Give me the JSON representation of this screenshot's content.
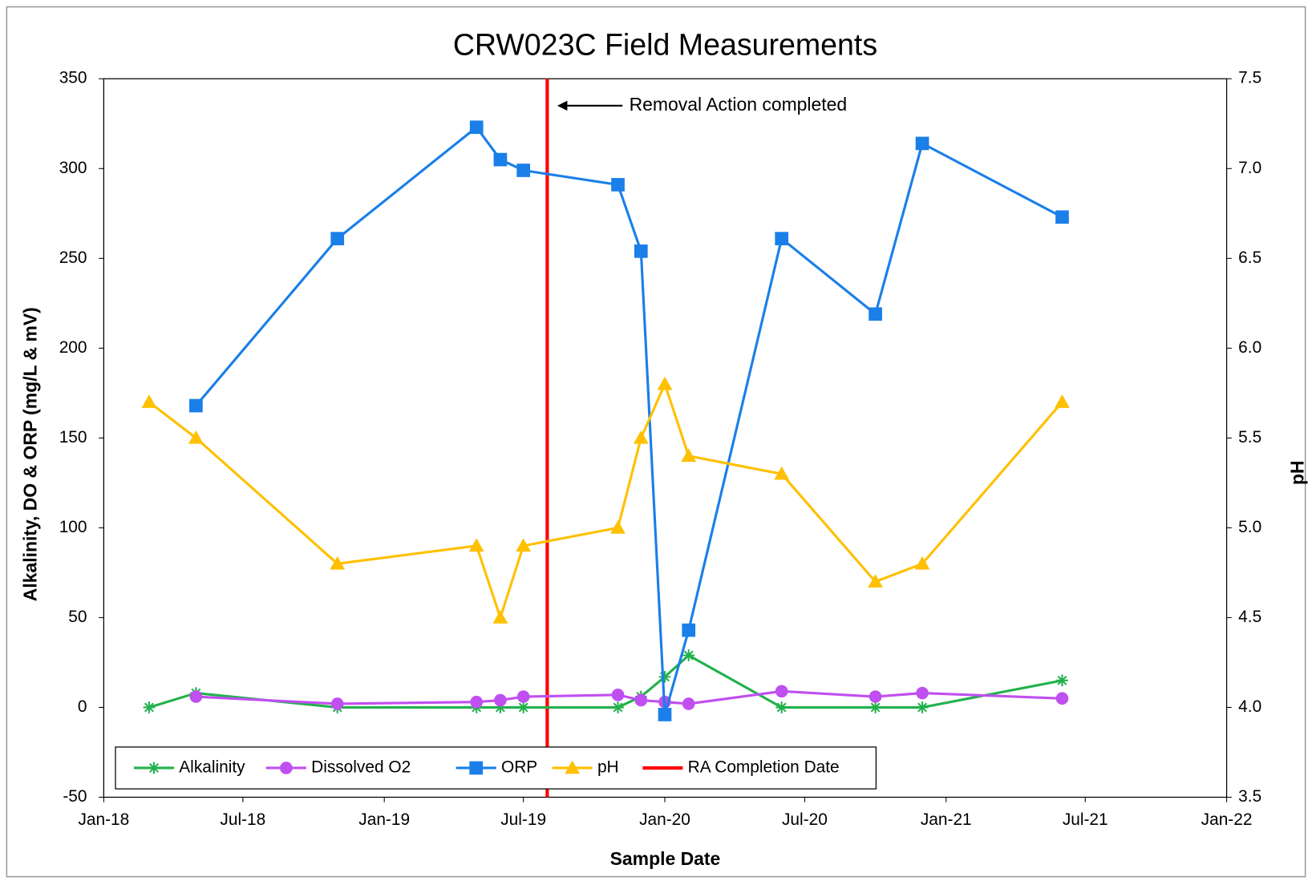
{
  "chart_data": {
    "type": "line",
    "title": "CRW023C Field Measurements",
    "xlabel": "Sample Date",
    "ylabel": "Alkalinity, DO & ORP  (mg/L  &  mV)",
    "y2label": "pH",
    "x": [
      "2018-03",
      "2018-05",
      "2018-11",
      "2019-05",
      "2019-06",
      "2019-07",
      "2019-11",
      "2019-12",
      "2020-01",
      "2020-02",
      "2020-06",
      "2020-10",
      "2020-12",
      "2021-06"
    ],
    "series": [
      {
        "name": "Alkalinity",
        "color": "#22b14c",
        "marker": "asterisk",
        "values": [
          0,
          8,
          0,
          0,
          0,
          0,
          0,
          6,
          17,
          29,
          0,
          0,
          0,
          15
        ]
      },
      {
        "name": "Dissolved O2",
        "color": "#c04ff0",
        "marker": "circle",
        "values": [
          null,
          6,
          2,
          3,
          4,
          6,
          7,
          4,
          3,
          2,
          9,
          6,
          8,
          5
        ]
      },
      {
        "name": "ORP",
        "color": "#1a7fe8",
        "marker": "square",
        "values": [
          null,
          168,
          261,
          323,
          305,
          299,
          291,
          254,
          -4,
          43,
          261,
          219,
          314,
          273
        ]
      },
      {
        "name": "pH",
        "color": "#ffc000",
        "marker": "triangle",
        "axis": "y2",
        "values": [
          5.7,
          5.5,
          4.8,
          4.9,
          4.5,
          4.9,
          5.0,
          5.5,
          5.8,
          5.4,
          5.3,
          4.7,
          4.8,
          5.7
        ]
      }
    ],
    "vline": {
      "name": "RA Completion Date",
      "color": "#ff0000",
      "x": "2019-08"
    },
    "annotation": {
      "text": "Removal Action completed",
      "x": "2019-08",
      "y": 335
    },
    "xlim": [
      "2018-01",
      "2022-01"
    ],
    "xticks": [
      {
        "value": "2018-01",
        "label": "Jan-18"
      },
      {
        "value": "2018-07",
        "label": "Jul-18"
      },
      {
        "value": "2019-01",
        "label": "Jan-19"
      },
      {
        "value": "2019-07",
        "label": "Jul-19"
      },
      {
        "value": "2020-01",
        "label": "Jan-20"
      },
      {
        "value": "2020-07",
        "label": "Jul-20"
      },
      {
        "value": "2021-01",
        "label": "Jan-21"
      },
      {
        "value": "2021-07",
        "label": "Jul-21"
      },
      {
        "value": "2022-01",
        "label": "Jan-22"
      }
    ],
    "ylim": [
      -50,
      350
    ],
    "yticks": [
      -50,
      0,
      50,
      100,
      150,
      200,
      250,
      300,
      350
    ],
    "y2lim": [
      3.5,
      7.5
    ],
    "y2ticks": [
      3.5,
      {
        "value": 4,
        "label": "4.0"
      },
      4.5,
      {
        "value": 5,
        "label": "5.0"
      },
      5.5,
      {
        "value": 6,
        "label": "6.0"
      },
      6.5,
      {
        "value": 7,
        "label": "7.0"
      },
      7.5
    ],
    "legend": "lower left"
  }
}
